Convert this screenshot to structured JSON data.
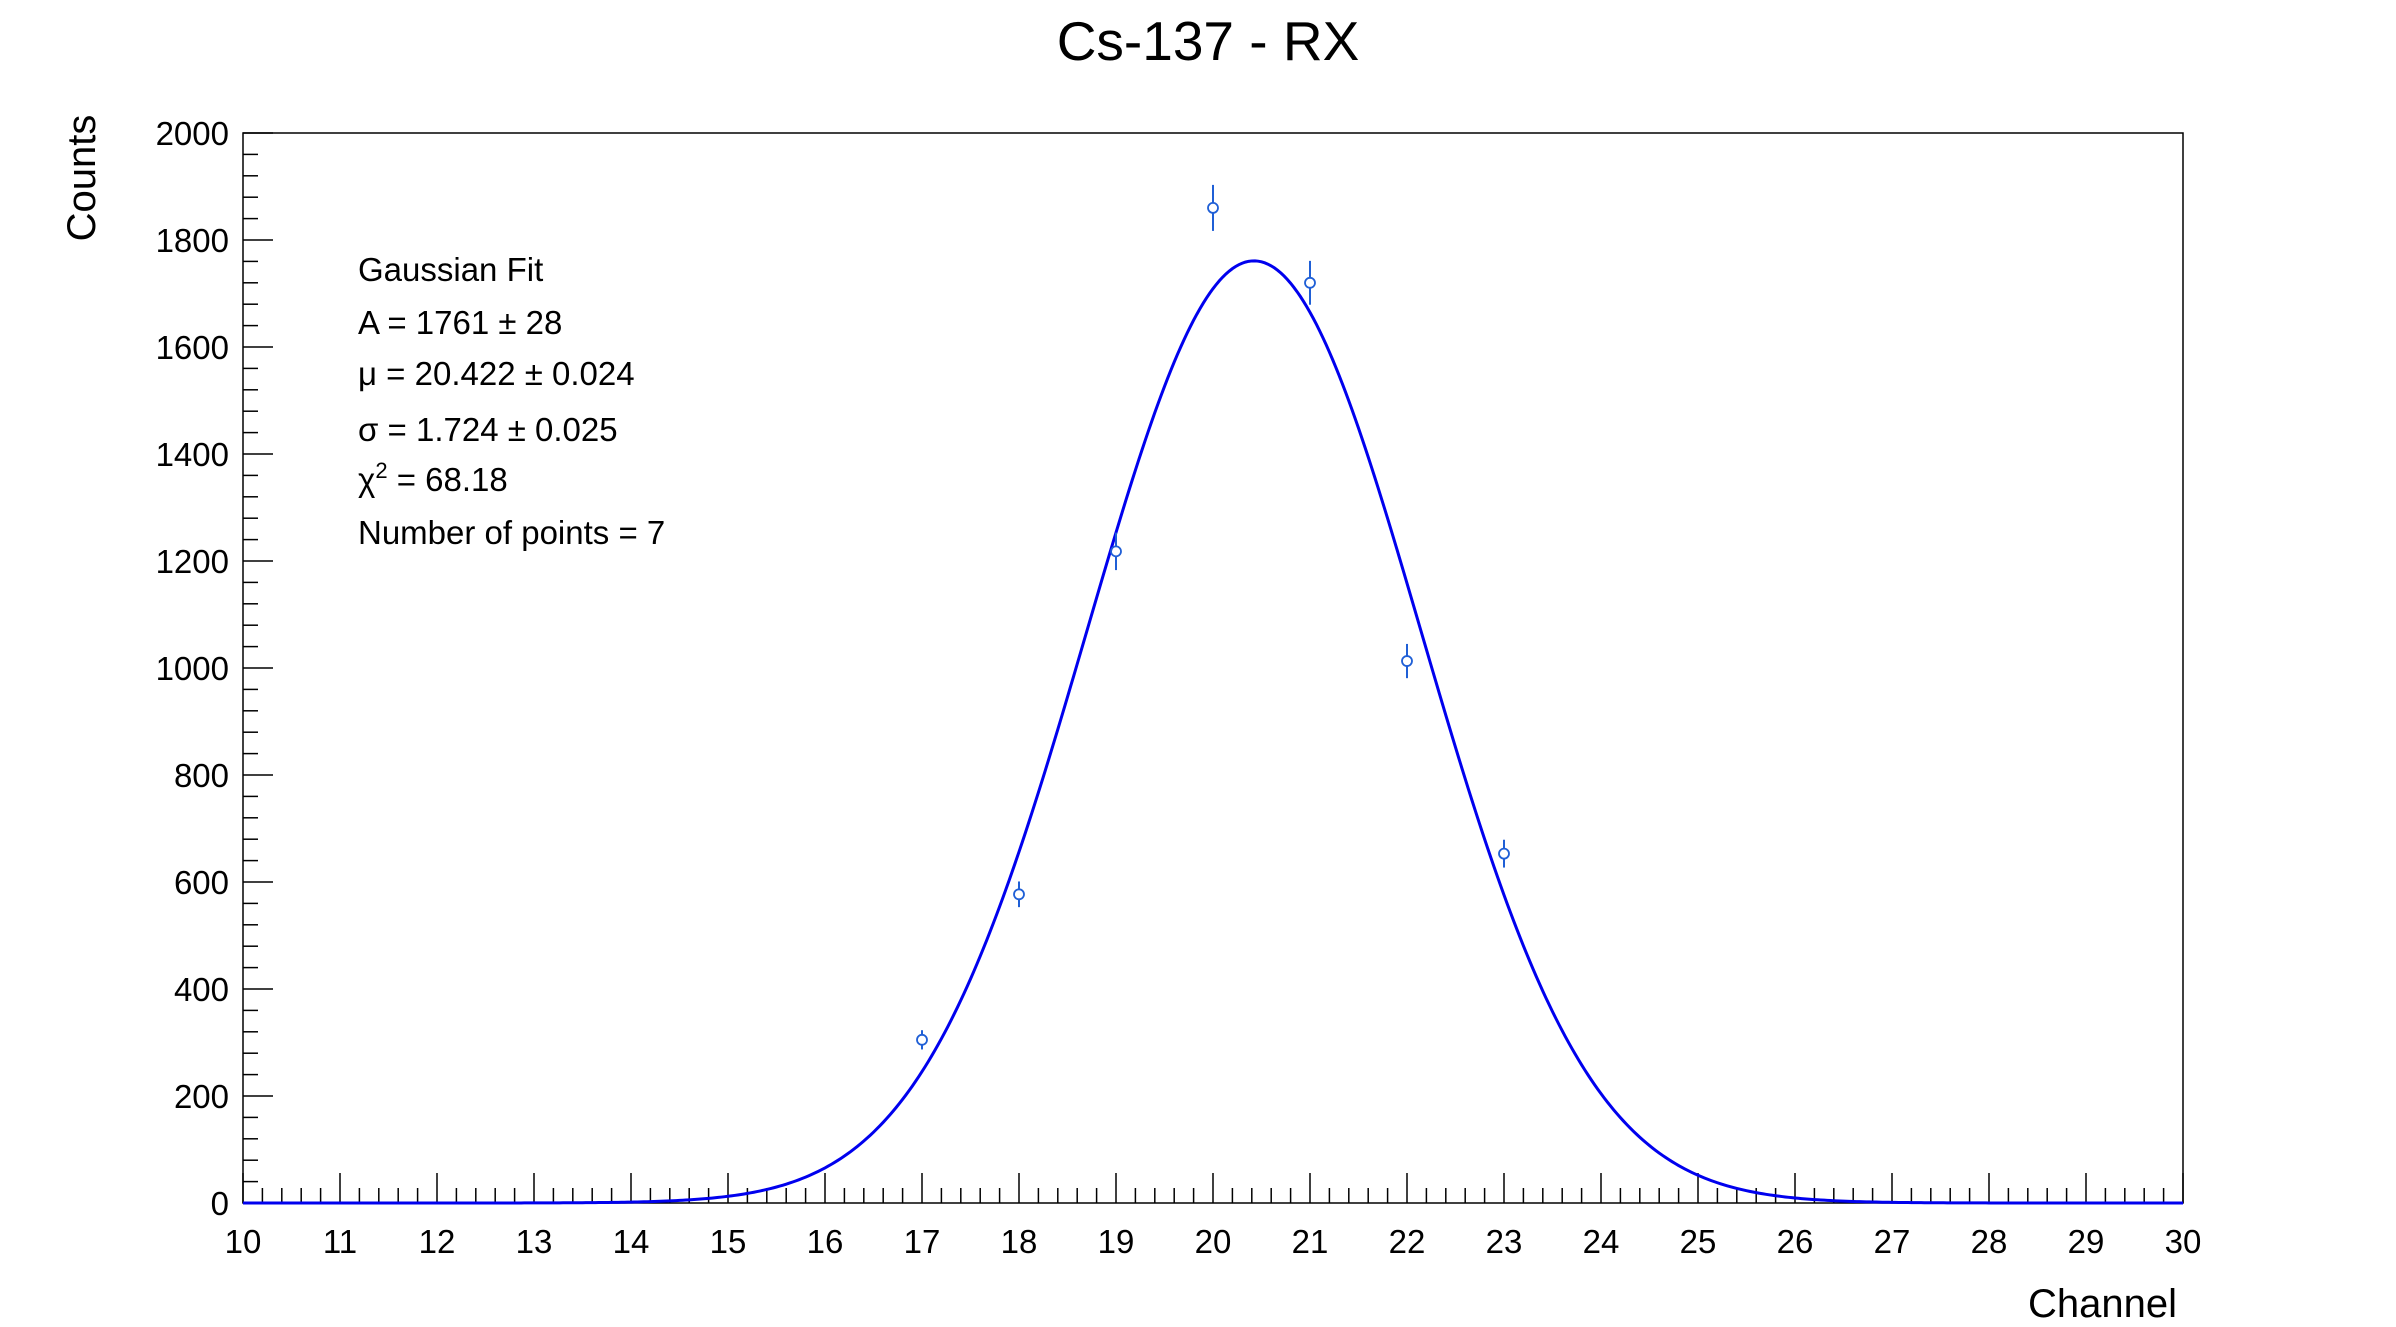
{
  "chart_data": {
    "type": "scatter",
    "title": "Cs-137 - RX",
    "xlabel": "Channel",
    "ylabel": "Counts",
    "xlim": [
      10,
      30
    ],
    "ylim": [
      0,
      2000
    ],
    "x_ticks": [
      "10",
      "11",
      "12",
      "13",
      "14",
      "15",
      "16",
      "17",
      "18",
      "19",
      "20",
      "21",
      "22",
      "23",
      "24",
      "25",
      "26",
      "27",
      "28",
      "29",
      "30"
    ],
    "y_ticks": [
      "0",
      "200",
      "400",
      "600",
      "800",
      "1000",
      "1200",
      "1400",
      "1600",
      "1800",
      "2000"
    ],
    "grid": false,
    "legend": "none",
    "series": [
      {
        "kind": "points-with-errors",
        "color": "#1f5fd6",
        "points": [
          {
            "x": 17,
            "y": 305,
            "err": 18
          },
          {
            "x": 18,
            "y": 577,
            "err": 24
          },
          {
            "x": 19,
            "y": 1218,
            "err": 35
          },
          {
            "x": 20,
            "y": 1860,
            "err": 43
          },
          {
            "x": 21,
            "y": 1720,
            "err": 41
          },
          {
            "x": 22,
            "y": 1013,
            "err": 32
          },
          {
            "x": 23,
            "y": 653,
            "err": 26
          }
        ]
      },
      {
        "kind": "gaussian-fit",
        "color": "#0000ee",
        "A": 1761,
        "mu": 20.422,
        "sigma": 1.724
      }
    ],
    "stats_box": {
      "line1": "Gaussian Fit",
      "line2": "A = 1761 ± 28",
      "line3_symbol": "μ",
      "line3_rest": " = 20.422 ± 0.024",
      "line4_symbol": "σ",
      "line4_rest": " = 1.724 ± 0.025",
      "line5_symbol": "χ",
      "line5_sup": "2",
      "line5_rest": " = 68.18",
      "line6": "Number of points = 7"
    }
  }
}
